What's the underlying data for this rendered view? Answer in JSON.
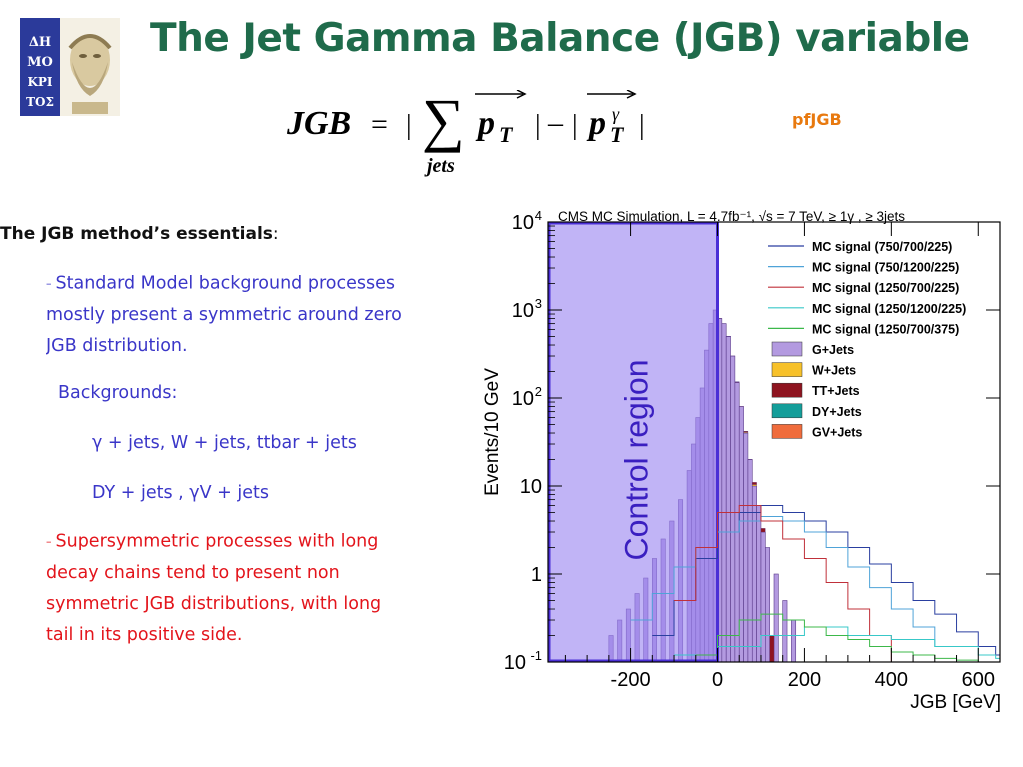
{
  "slide": {
    "title": "The Jet Gamma Balance (JGB) variable",
    "formula": {
      "lhs": "JGB",
      "eq": "=",
      "bar": "|",
      "minus": "–",
      "sub_jets": "jets",
      "p": "p",
      "T": "T",
      "gamma": "γ"
    },
    "pfjgb_label": "pfJGB",
    "logo_letters": [
      "ΔΗ",
      "ΜΟ",
      "ΚΡΙ",
      "ΤΟΣ"
    ],
    "essentials": {
      "bold": "The JGB method’s essentials",
      "colon": ":"
    },
    "bullets": {
      "sm_lines": [
        "Standard Model background processes",
        "mostly present a symmetric around zero",
        "JGB  distribution."
      ],
      "backgrounds_label": "Backgrounds:",
      "bg_line1": "γ + jets, W + jets, ttbar + jets",
      "bg_line2": "DY + jets , γV + jets",
      "susy_lines": [
        "Supersymmetric processes with long",
        "decay chains tend to present non",
        "symmetric JGB distributions, with long",
        "tail in its positive side."
      ]
    }
  },
  "chart_data": {
    "type": "bar",
    "title": "CMS MC Simulation, L = 4.7fb⁻¹, √s = 7 TeV, ≥ 1γ , ≥ 3jets",
    "xlabel": "JGB [GeV]",
    "ylabel": "Events/10 GeV",
    "log_y": true,
    "xlim": [
      -390,
      650
    ],
    "ylim": [
      0.1,
      10000
    ],
    "x_ticks": [
      {
        "v": -200,
        "label": "-200"
      },
      {
        "v": 0,
        "label": "0"
      },
      {
        "v": 200,
        "label": "200"
      },
      {
        "v": 400,
        "label": "400"
      },
      {
        "v": 600,
        "label": "600"
      }
    ],
    "y_ticks": [
      {
        "v": 10000,
        "base": "10",
        "exp": "4"
      },
      {
        "v": 1000,
        "base": "10",
        "exp": "3"
      },
      {
        "v": 100,
        "base": "10",
        "exp": "2"
      },
      {
        "v": 10,
        "base": "10",
        "exp": ""
      },
      {
        "v": 1,
        "base": "1",
        "exp": ""
      },
      {
        "v": 0.1,
        "base": "10",
        "exp": "-1"
      }
    ],
    "legend_position": "top-right",
    "control_region": {
      "label": "Control region",
      "x_range": [
        -390,
        0
      ],
      "color": "#9b86f0"
    },
    "bin_width": 10,
    "stacked": [
      {
        "name": "G+Jets",
        "color": "#b39ae0",
        "x": [
          -250,
          -230,
          -210,
          -190,
          -170,
          -150,
          -130,
          -110,
          -90,
          -70,
          -60,
          -50,
          -40,
          -30,
          -20,
          -10,
          0,
          10,
          20,
          30,
          40,
          50,
          60,
          70,
          80,
          90,
          100,
          110,
          130,
          150,
          170
        ],
        "values": [
          0.2,
          0.3,
          0.4,
          0.6,
          0.9,
          1.5,
          2.5,
          4,
          7,
          15,
          30,
          60,
          130,
          350,
          700,
          1000,
          800,
          700,
          500,
          300,
          150,
          80,
          40,
          20,
          10,
          6,
          3,
          2,
          1,
          0.5,
          0.3
        ]
      },
      {
        "name": "W+Jets",
        "color": "#f7c12a",
        "x": [
          0,
          20,
          40,
          60,
          80
        ],
        "values": [
          1.0,
          1.5,
          1.2,
          0.8,
          0.4
        ]
      },
      {
        "name": "TT+Jets",
        "color": "#8e1420",
        "x": [
          -20,
          0,
          20,
          40,
          60,
          80,
          100,
          120
        ],
        "values": [
          0.6,
          1.2,
          2.0,
          1.5,
          1.0,
          0.6,
          0.3,
          0.2
        ]
      },
      {
        "name": "DY+Jets",
        "color": "#149e9a",
        "x": [
          20,
          40,
          60
        ],
        "values": [
          0.3,
          0.4,
          0.2
        ]
      },
      {
        "name": "GV+Jets",
        "color": "#f06c3c",
        "x": [
          10,
          30,
          50,
          70
        ],
        "values": [
          0.2,
          0.3,
          0.25,
          0.15
        ]
      }
    ],
    "series": [
      {
        "name": "MC signal (750/700/225)",
        "color": "#2a3fa0",
        "x": [
          -150,
          -100,
          -50,
          0,
          50,
          100,
          150,
          200,
          250,
          300,
          350,
          400,
          450,
          500,
          550,
          600,
          640
        ],
        "values": [
          0.2,
          0.5,
          1.5,
          3,
          5,
          6,
          5,
          4,
          3,
          2,
          1.3,
          0.8,
          0.5,
          0.35,
          0.22,
          0.15,
          0.12
        ]
      },
      {
        "name": "MC signal (750/1200/225)",
        "color": "#4fa3d8",
        "x": [
          -200,
          -150,
          -100,
          -50,
          0,
          50,
          100,
          150,
          200,
          250,
          300,
          350,
          400,
          450,
          500
        ],
        "values": [
          0.3,
          0.6,
          1.2,
          2,
          3,
          4,
          4.5,
          4,
          3,
          2,
          1.2,
          0.7,
          0.4,
          0.25,
          0.15
        ]
      },
      {
        "name": "MC signal (1250/700/225)",
        "color": "#c0303a",
        "x": [
          -100,
          -50,
          0,
          50,
          100,
          150,
          200,
          250,
          300,
          350,
          400
        ],
        "values": [
          0.5,
          2,
          5,
          6,
          4,
          2.5,
          1.5,
          0.8,
          0.4,
          0.2,
          0.1
        ]
      },
      {
        "name": "MC signal (1250/1200/225)",
        "color": "#38c8c8",
        "x": [
          -100,
          0,
          100,
          200,
          300,
          400,
          500,
          600,
          640
        ],
        "values": [
          0.12,
          0.15,
          0.2,
          0.25,
          0.2,
          0.18,
          0.15,
          0.12,
          0.11
        ]
      },
      {
        "name": "MC signal (1250/700/375)",
        "color": "#3cb84a",
        "x": [
          -50,
          0,
          50,
          100,
          150,
          200,
          250,
          300,
          350,
          400,
          450,
          500,
          550,
          600,
          640
        ],
        "values": [
          0.12,
          0.2,
          0.3,
          0.35,
          0.3,
          0.25,
          0.2,
          0.18,
          0.15,
          0.13,
          0.12,
          0.11,
          0.105,
          0.1,
          0.1
        ]
      }
    ]
  }
}
